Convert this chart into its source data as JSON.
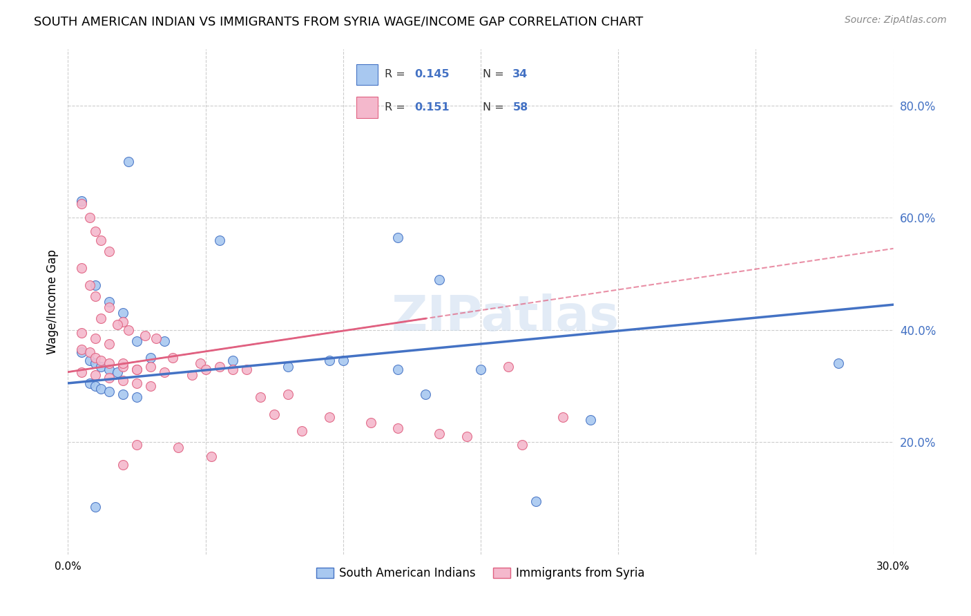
{
  "title": "SOUTH AMERICAN INDIAN VS IMMIGRANTS FROM SYRIA WAGE/INCOME GAP CORRELATION CHART",
  "source": "Source: ZipAtlas.com",
  "ylabel": "Wage/Income Gap",
  "xlim": [
    0.0,
    0.3
  ],
  "ylim": [
    0.0,
    0.9
  ],
  "x_tick_positions": [
    0.0,
    0.05,
    0.1,
    0.15,
    0.2,
    0.25,
    0.3
  ],
  "x_tick_labels": [
    "0.0%",
    "",
    "",
    "",
    "",
    "",
    "30.0%"
  ],
  "y_ticks_right": [
    0.2,
    0.4,
    0.6,
    0.8
  ],
  "y_tick_labels_right": [
    "20.0%",
    "40.0%",
    "60.0%",
    "80.0%"
  ],
  "series1_label": "South American Indians",
  "series2_label": "Immigrants from Syria",
  "color_blue": "#A8C8F0",
  "color_pink": "#F4B8CC",
  "line_color_blue": "#4472C4",
  "line_color_pink": "#E06080",
  "watermark": "ZIPatlas",
  "blue_x": [
    0.022,
    0.005,
    0.01,
    0.015,
    0.02,
    0.025,
    0.005,
    0.008,
    0.01,
    0.012,
    0.015,
    0.018,
    0.008,
    0.01,
    0.012,
    0.015,
    0.02,
    0.025,
    0.03,
    0.035,
    0.06,
    0.08,
    0.095,
    0.1,
    0.12,
    0.13,
    0.15,
    0.17,
    0.19,
    0.12,
    0.135,
    0.28,
    0.055,
    0.01
  ],
  "blue_y": [
    0.7,
    0.63,
    0.48,
    0.45,
    0.43,
    0.38,
    0.36,
    0.345,
    0.34,
    0.335,
    0.33,
    0.325,
    0.305,
    0.3,
    0.295,
    0.29,
    0.285,
    0.28,
    0.35,
    0.38,
    0.345,
    0.335,
    0.345,
    0.345,
    0.33,
    0.285,
    0.33,
    0.095,
    0.24,
    0.565,
    0.49,
    0.34,
    0.56,
    0.085
  ],
  "pink_x": [
    0.005,
    0.008,
    0.01,
    0.012,
    0.015,
    0.005,
    0.008,
    0.01,
    0.015,
    0.02,
    0.005,
    0.01,
    0.015,
    0.005,
    0.008,
    0.01,
    0.012,
    0.015,
    0.02,
    0.025,
    0.005,
    0.01,
    0.015,
    0.02,
    0.025,
    0.03,
    0.012,
    0.018,
    0.022,
    0.028,
    0.032,
    0.038,
    0.048,
    0.055,
    0.065,
    0.08,
    0.095,
    0.11,
    0.12,
    0.135,
    0.145,
    0.165,
    0.18,
    0.02,
    0.03,
    0.05,
    0.06,
    0.07,
    0.075,
    0.085,
    0.025,
    0.04,
    0.052,
    0.025,
    0.035,
    0.045,
    0.02,
    0.16
  ],
  "pink_y": [
    0.625,
    0.6,
    0.575,
    0.56,
    0.54,
    0.51,
    0.48,
    0.46,
    0.44,
    0.415,
    0.395,
    0.385,
    0.375,
    0.365,
    0.36,
    0.35,
    0.345,
    0.34,
    0.335,
    0.33,
    0.325,
    0.32,
    0.315,
    0.31,
    0.305,
    0.3,
    0.42,
    0.41,
    0.4,
    0.39,
    0.385,
    0.35,
    0.34,
    0.335,
    0.33,
    0.285,
    0.245,
    0.235,
    0.225,
    0.215,
    0.21,
    0.195,
    0.245,
    0.34,
    0.335,
    0.33,
    0.33,
    0.28,
    0.25,
    0.22,
    0.195,
    0.19,
    0.175,
    0.33,
    0.325,
    0.32,
    0.16,
    0.335
  ]
}
